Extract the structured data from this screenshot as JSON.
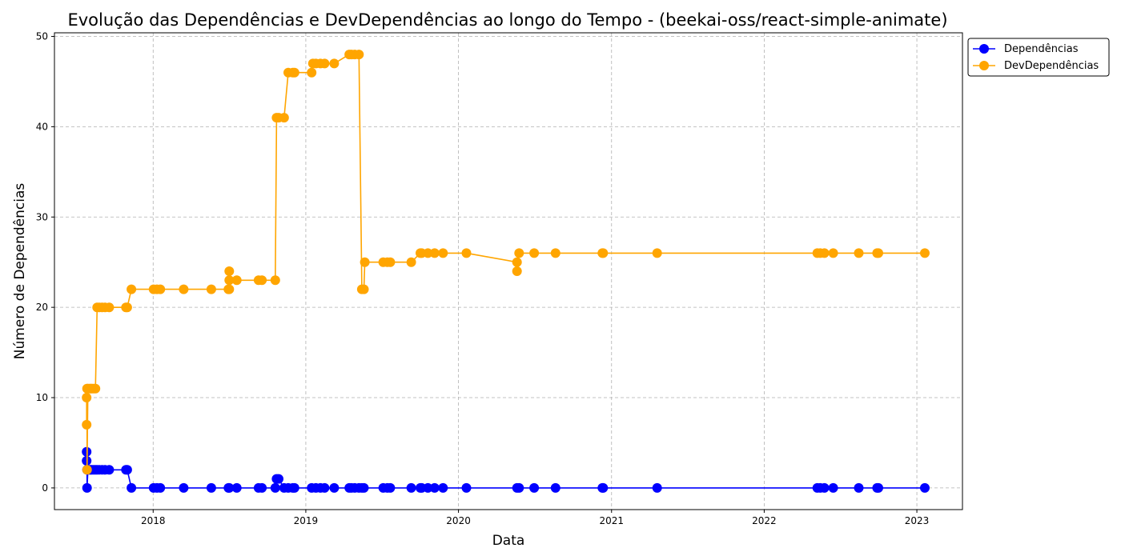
{
  "chart_data": {
    "type": "line",
    "title": "Evolução das Dependências e DevDependências ao longo do Tempo - (beekai-oss/react-simple-animate)",
    "xlabel": "Data",
    "ylabel": "Número de Dependências",
    "xlim": [
      "2017-05-10",
      "2023-04-20"
    ],
    "ylim": [
      -2.4,
      50.4
    ],
    "x_ticks": [
      "2018",
      "2019",
      "2020",
      "2021",
      "2022",
      "2023"
    ],
    "y_ticks": [
      0,
      10,
      20,
      30,
      40,
      50
    ],
    "grid": true,
    "legend_position": "top-right, outside plot",
    "series": [
      {
        "name": "Dependências",
        "color": "#0000ff",
        "marker": "circle",
        "x": [
          "2017-07-26",
          "2017-07-26",
          "2017-07-27",
          "2017-07-27",
          "2017-07-29",
          "2017-08-02",
          "2017-08-05",
          "2017-08-08",
          "2017-08-12",
          "2017-08-16",
          "2017-08-20",
          "2017-08-25",
          "2017-09-01",
          "2017-09-08",
          "2017-09-18",
          "2017-10-28",
          "2017-10-31",
          "2017-11-10",
          "2018-01-02",
          "2018-01-10",
          "2018-01-18",
          "2018-03-15",
          "2018-05-20",
          "2018-06-30",
          "2018-07-02",
          "2018-07-20",
          "2018-09-10",
          "2018-09-18",
          "2018-10-20",
          "2018-10-23",
          "2018-10-28",
          "2018-11-10",
          "2018-11-20",
          "2018-12-01",
          "2018-12-05",
          "2019-01-15",
          "2019-01-25",
          "2019-02-05",
          "2019-02-15",
          "2019-03-10",
          "2019-04-15",
          "2019-04-20",
          "2019-04-28",
          "2019-05-08",
          "2019-05-15",
          "2019-05-20",
          "2019-07-05",
          "2019-07-15",
          "2019-07-22",
          "2019-09-10",
          "2019-10-02",
          "2019-10-05",
          "2019-10-20",
          "2019-11-05",
          "2019-11-25",
          "2020-01-20",
          "2020-05-20",
          "2020-05-25",
          "2020-06-30",
          "2020-08-20",
          "2020-12-10",
          "2020-12-12",
          "2021-04-20",
          "2022-05-08",
          "2022-05-15",
          "2022-05-25",
          "2022-06-15",
          "2022-08-15",
          "2022-09-28",
          "2022-10-01",
          "2023-01-20"
        ],
        "y": [
          4,
          3,
          2,
          0,
          2,
          2,
          2,
          2,
          2,
          2,
          2,
          2,
          2,
          2,
          2,
          2,
          2,
          0,
          0,
          0,
          0,
          0,
          0,
          0,
          0,
          0,
          0,
          0,
          0,
          1,
          1,
          0,
          0,
          0,
          0,
          0,
          0,
          0,
          0,
          0,
          0,
          0,
          0,
          0,
          0,
          0,
          0,
          0,
          0,
          0,
          0,
          0,
          0,
          0,
          0,
          0,
          0,
          0,
          0,
          0,
          0,
          0,
          0,
          0,
          0,
          0,
          0,
          0,
          0,
          0,
          0
        ]
      },
      {
        "name": "DevDependências",
        "color": "#ffa500",
        "marker": "circle",
        "x": [
          "2017-07-26",
          "2017-07-26",
          "2017-07-27",
          "2017-07-27",
          "2017-07-29",
          "2017-08-02",
          "2017-08-05",
          "2017-08-08",
          "2017-08-12",
          "2017-08-16",
          "2017-08-20",
          "2017-08-25",
          "2017-09-01",
          "2017-09-08",
          "2017-09-18",
          "2017-10-28",
          "2017-10-31",
          "2017-11-10",
          "2018-01-02",
          "2018-01-10",
          "2018-01-18",
          "2018-03-15",
          "2018-05-20",
          "2018-06-30",
          "2018-07-02",
          "2018-07-02",
          "2018-07-02",
          "2018-07-20",
          "2018-09-10",
          "2018-09-18",
          "2018-10-20",
          "2018-10-23",
          "2018-10-28",
          "2018-11-10",
          "2018-11-20",
          "2018-12-01",
          "2018-12-05",
          "2019-01-15",
          "2019-01-18",
          "2019-01-25",
          "2019-02-05",
          "2019-02-15",
          "2019-03-10",
          "2019-04-15",
          "2019-04-20",
          "2019-04-28",
          "2019-05-08",
          "2019-05-15",
          "2019-05-20",
          "2019-05-22",
          "2019-07-05",
          "2019-07-15",
          "2019-07-22",
          "2019-09-10",
          "2019-10-02",
          "2019-10-05",
          "2019-10-20",
          "2019-11-05",
          "2019-11-25",
          "2020-01-20",
          "2020-05-20",
          "2020-05-20",
          "2020-05-25",
          "2020-06-30",
          "2020-08-20",
          "2020-12-10",
          "2020-12-12",
          "2021-04-20",
          "2022-05-08",
          "2022-05-15",
          "2022-05-25",
          "2022-06-15",
          "2022-08-15",
          "2022-09-28",
          "2022-10-01",
          "2023-01-20"
        ],
        "y": [
          7,
          10,
          11,
          2,
          11,
          11,
          11,
          11,
          11,
          11,
          20,
          20,
          20,
          20,
          20,
          20,
          20,
          22,
          22,
          22,
          22,
          22,
          22,
          22,
          22,
          24,
          23,
          23,
          23,
          23,
          23,
          41,
          41,
          41,
          46,
          46,
          46,
          46,
          47,
          47,
          47,
          47,
          47,
          48,
          48,
          48,
          48,
          22,
          22,
          25,
          25,
          25,
          25,
          25,
          26,
          26,
          26,
          26,
          26,
          26,
          25,
          24,
          26,
          26,
          26,
          26,
          26,
          26,
          26,
          26,
          26,
          26,
          26,
          26,
          26,
          26
        ]
      }
    ]
  }
}
